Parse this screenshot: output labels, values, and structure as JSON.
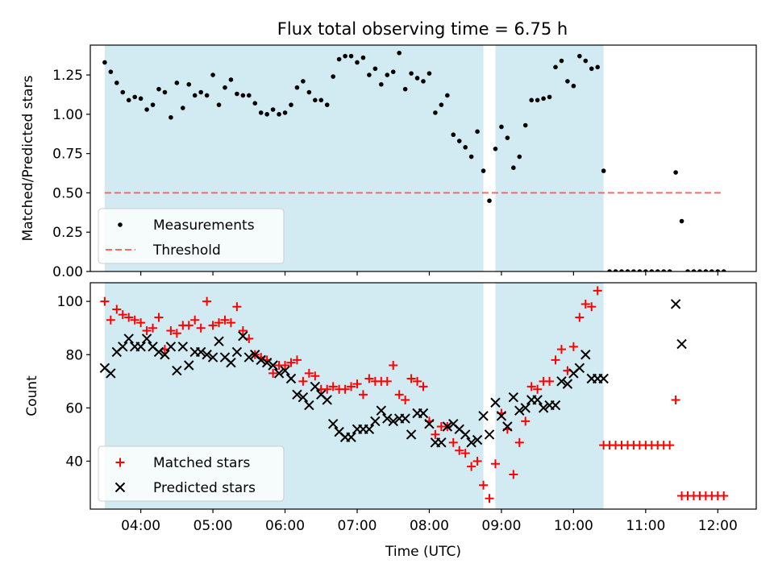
{
  "title": "Flux total observing time = 6.75 h",
  "colors": {
    "observing_band": "#add8e6",
    "measurement": "#000000",
    "threshold": "#ff6666",
    "matched": "#ff0000",
    "predicted": "#000000"
  },
  "chart_data": [
    {
      "type": "scatter",
      "xlabel": "",
      "ylabel": "Matched/Predicted stars",
      "xlim": [
        "03:18",
        "12:32"
      ],
      "ylim": [
        0,
        1.44
      ],
      "yticks": [
        "0.00",
        "0.25",
        "0.50",
        "0.75",
        "1.00",
        "1.25"
      ],
      "grid": false,
      "legend_position": "lower-left",
      "bands": [
        {
          "start": "03:30",
          "end": "08:45"
        },
        {
          "start": "08:55",
          "end": "10:25"
        }
      ],
      "series": [
        {
          "name": "Measurements",
          "marker": "dot",
          "x": [
            "03:30",
            "03:35",
            "03:40",
            "03:45",
            "03:50",
            "03:55",
            "04:00",
            "04:05",
            "04:10",
            "04:15",
            "04:20",
            "04:25",
            "04:30",
            "04:35",
            "04:40",
            "04:45",
            "04:50",
            "04:55",
            "05:00",
            "05:05",
            "05:10",
            "05:15",
            "05:20",
            "05:25",
            "05:30",
            "05:35",
            "05:40",
            "05:45",
            "05:50",
            "05:55",
            "06:00",
            "06:05",
            "06:10",
            "06:15",
            "06:20",
            "06:25",
            "06:30",
            "06:35",
            "06:40",
            "06:45",
            "06:50",
            "06:55",
            "07:00",
            "07:05",
            "07:10",
            "07:15",
            "07:20",
            "07:25",
            "07:30",
            "07:35",
            "07:40",
            "07:45",
            "07:50",
            "07:55",
            "08:00",
            "08:05",
            "08:10",
            "08:15",
            "08:20",
            "08:25",
            "08:30",
            "08:35",
            "08:40",
            "08:45",
            "08:50",
            "08:55",
            "09:00",
            "09:05",
            "09:10",
            "09:15",
            "09:20",
            "09:25",
            "09:30",
            "09:35",
            "09:40",
            "09:45",
            "09:50",
            "09:55",
            "10:00",
            "10:05",
            "10:10",
            "10:15",
            "10:20",
            "10:25",
            "10:30",
            "10:35",
            "10:40",
            "10:45",
            "10:50",
            "10:55",
            "11:00",
            "11:05",
            "11:10",
            "11:15",
            "11:20",
            "11:25",
            "11:30",
            "11:35",
            "11:40",
            "11:45",
            "11:50",
            "11:55",
            "12:00",
            "12:05"
          ],
          "y": [
            1.33,
            1.27,
            1.2,
            1.14,
            1.09,
            1.11,
            1.1,
            1.03,
            1.06,
            1.16,
            1.14,
            0.98,
            1.2,
            1.04,
            1.19,
            1.12,
            1.14,
            1.12,
            1.25,
            1.06,
            1.17,
            1.22,
            1.13,
            1.12,
            1.12,
            1.07,
            1.01,
            1.0,
            1.03,
            1.0,
            1.01,
            1.06,
            1.17,
            1.21,
            1.14,
            1.09,
            1.09,
            1.06,
            1.24,
            1.35,
            1.37,
            1.37,
            1.33,
            1.36,
            1.25,
            1.29,
            1.19,
            1.25,
            1.27,
            1.39,
            1.16,
            1.26,
            1.23,
            1.21,
            1.26,
            1.01,
            1.06,
            1.12,
            0.87,
            0.83,
            0.79,
            0.73,
            0.89,
            0.64,
            0.45,
            0.78,
            0.92,
            0.85,
            0.66,
            0.73,
            0.93,
            1.09,
            1.09,
            1.1,
            1.11,
            1.3,
            1.34,
            1.21,
            1.18,
            1.37,
            1.34,
            1.29,
            1.3,
            0.64,
            0.0,
            0.0,
            0.0,
            0.0,
            0.0,
            0.0,
            0.0,
            0.0,
            0.0,
            0.0,
            0.0,
            0.63,
            0.32,
            0.0,
            0.0,
            0.0,
            0.0,
            0.0,
            0.0,
            0.0
          ]
        },
        {
          "name": "Threshold",
          "type": "line",
          "style": "dashed",
          "x": [
            "03:30",
            "12:05"
          ],
          "y": [
            0.5,
            0.5
          ]
        }
      ]
    },
    {
      "type": "scatter",
      "xlabel": "Time (UTC)",
      "ylabel": "Count",
      "xlim": [
        "03:18",
        "12:32"
      ],
      "ylim": [
        22,
        107
      ],
      "yticks": [
        "40",
        "60",
        "80",
        "100"
      ],
      "xticks": [
        "04:00",
        "05:00",
        "06:00",
        "07:00",
        "08:00",
        "09:00",
        "10:00",
        "11:00",
        "12:00"
      ],
      "grid": false,
      "legend_position": "lower-left",
      "bands": [
        {
          "start": "03:30",
          "end": "08:45"
        },
        {
          "start": "08:55",
          "end": "10:25"
        }
      ],
      "series": [
        {
          "name": "Matched stars",
          "marker": "plus",
          "x": [
            "03:30",
            "03:35",
            "03:40",
            "03:45",
            "03:50",
            "03:55",
            "04:00",
            "04:05",
            "04:10",
            "04:15",
            "04:20",
            "04:25",
            "04:30",
            "04:35",
            "04:40",
            "04:45",
            "04:50",
            "04:55",
            "05:00",
            "05:05",
            "05:10",
            "05:15",
            "05:20",
            "05:25",
            "05:30",
            "05:35",
            "05:40",
            "05:45",
            "05:50",
            "05:55",
            "06:00",
            "06:05",
            "06:10",
            "06:15",
            "06:20",
            "06:25",
            "06:30",
            "06:35",
            "06:40",
            "06:45",
            "06:50",
            "06:55",
            "07:00",
            "07:05",
            "07:10",
            "07:15",
            "07:20",
            "07:25",
            "07:30",
            "07:35",
            "07:40",
            "07:45",
            "07:50",
            "07:55",
            "08:00",
            "08:05",
            "08:10",
            "08:15",
            "08:20",
            "08:25",
            "08:30",
            "08:35",
            "08:40",
            "08:45",
            "08:50",
            "08:55",
            "09:00",
            "09:05",
            "09:10",
            "09:15",
            "09:20",
            "09:25",
            "09:30",
            "09:35",
            "09:40",
            "09:45",
            "09:50",
            "09:55",
            "10:00",
            "10:05",
            "10:10",
            "10:15",
            "10:20",
            "10:25",
            "10:30",
            "10:35",
            "10:40",
            "10:45",
            "10:50",
            "10:55",
            "11:00",
            "11:05",
            "11:10",
            "11:15",
            "11:20",
            "11:25",
            "11:30",
            "11:35",
            "11:40",
            "11:45",
            "11:50",
            "11:55",
            "12:00",
            "12:05"
          ],
          "y": [
            100,
            93,
            97,
            95,
            94,
            93,
            92,
            89,
            90,
            94,
            82,
            89,
            88,
            91,
            91,
            93,
            90,
            100,
            91,
            92,
            93,
            92,
            98,
            89,
            86,
            80,
            79,
            78,
            73,
            76,
            76,
            77,
            78,
            70,
            73,
            72,
            67,
            67,
            68,
            67,
            67,
            68,
            69,
            65,
            71,
            70,
            70,
            70,
            76,
            65,
            63,
            71,
            70,
            68,
            55,
            50,
            53,
            53,
            47,
            44,
            43,
            38,
            40,
            31,
            26,
            39,
            58,
            52,
            35,
            47,
            55,
            68,
            67,
            70,
            70,
            78,
            82,
            74,
            83,
            94,
            99,
            98,
            104,
            46,
            46,
            46,
            46,
            46,
            46,
            46,
            46,
            46,
            46,
            46,
            46,
            63,
            27,
            27,
            27,
            27,
            27,
            27,
            27,
            27
          ]
        },
        {
          "name": "Predicted stars",
          "marker": "x",
          "x": [
            "03:30",
            "03:35",
            "03:40",
            "03:45",
            "03:50",
            "03:55",
            "04:00",
            "04:05",
            "04:10",
            "04:15",
            "04:20",
            "04:25",
            "04:30",
            "04:35",
            "04:40",
            "04:45",
            "04:50",
            "04:55",
            "05:00",
            "05:05",
            "05:10",
            "05:15",
            "05:20",
            "05:25",
            "05:30",
            "05:35",
            "05:40",
            "05:45",
            "05:50",
            "05:55",
            "06:00",
            "06:05",
            "06:10",
            "06:15",
            "06:20",
            "06:25",
            "06:30",
            "06:35",
            "06:40",
            "06:45",
            "06:50",
            "06:55",
            "07:00",
            "07:05",
            "07:10",
            "07:15",
            "07:20",
            "07:25",
            "07:30",
            "07:35",
            "07:40",
            "07:45",
            "07:50",
            "07:55",
            "08:00",
            "08:05",
            "08:10",
            "08:15",
            "08:20",
            "08:25",
            "08:30",
            "08:35",
            "08:40",
            "08:45",
            "08:50",
            "08:55",
            "09:00",
            "09:05",
            "09:10",
            "09:15",
            "09:20",
            "09:25",
            "09:30",
            "09:35",
            "09:40",
            "09:45",
            "09:50",
            "09:55",
            "10:00",
            "10:05",
            "10:10",
            "10:15",
            "10:20",
            "10:25",
            "11:25",
            "11:30"
          ],
          "y": [
            75,
            73,
            81,
            83,
            86,
            83,
            83,
            86,
            83,
            81,
            80,
            83,
            74,
            83,
            76,
            81,
            81,
            80,
            79,
            85,
            79,
            77,
            81,
            87,
            79,
            80,
            78,
            77,
            76,
            73,
            74,
            71,
            65,
            64,
            61,
            68,
            65,
            63,
            54,
            51,
            49,
            49,
            52,
            52,
            52,
            55,
            59,
            56,
            55,
            56,
            56,
            50,
            58,
            58,
            54,
            47,
            47,
            53,
            54,
            52,
            50,
            47,
            48,
            57,
            50,
            62,
            57,
            53,
            64,
            59,
            60,
            63,
            63,
            60,
            61,
            61,
            70,
            69,
            73,
            75,
            80,
            71,
            71,
            71,
            99,
            84
          ]
        }
      ]
    }
  ]
}
